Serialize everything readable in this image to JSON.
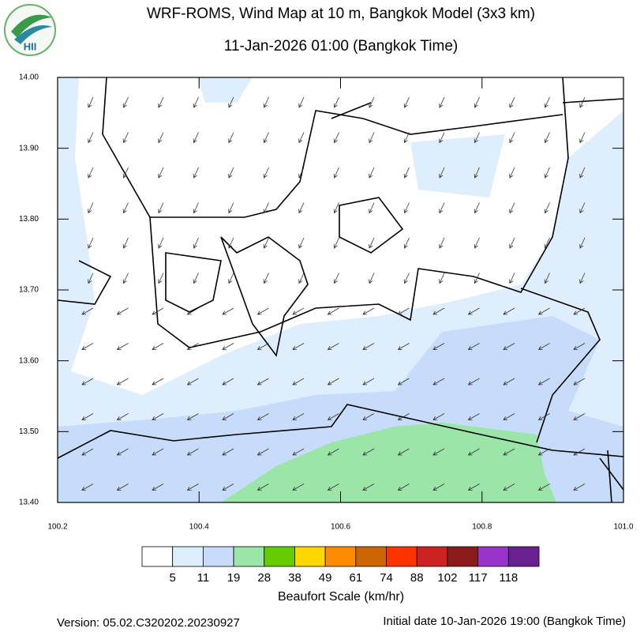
{
  "logo": {
    "text": "HII"
  },
  "chart_data": {
    "type": "map",
    "title": "WRF-ROMS, Wind Map at 10 m, Bangkok Model (3x3 km)",
    "subtitle": "11-Jan-2026 01:00 (Bangkok Time)",
    "xlim": [
      100.2,
      101.0
    ],
    "xticks": [
      100.2,
      100.4,
      100.6,
      100.8,
      {
        "value": 101,
        "label": "101.0"
      }
    ],
    "ylim": [
      13.4,
      14.0
    ],
    "yticks": [
      {
        "value": 13.4,
        "label": "13.40"
      },
      {
        "value": 13.5,
        "label": "13.50"
      },
      {
        "value": 13.6,
        "label": "13.60"
      },
      {
        "value": 13.7,
        "label": "13.70"
      },
      {
        "value": 13.8,
        "label": "13.80"
      },
      {
        "value": 13.9,
        "label": "13.90"
      },
      {
        "value": 14,
        "label": "14.00"
      }
    ],
    "colorbar": {
      "title": "Beaufort Scale (km/hr)",
      "colors": [
        "#ffffff",
        "#dfeefd",
        "#c6dcfa",
        "#9be5a8",
        "#66cc00",
        "#ffd700",
        "#ff8c00",
        "#cc6600",
        "#ff3300",
        "#cc2222",
        "#8b1a1a",
        "#9933cc",
        "#6a2090"
      ],
      "levels": [
        5,
        11,
        19,
        28,
        38,
        49,
        61,
        74,
        88,
        102,
        117,
        118
      ]
    }
  },
  "footer": {
    "version": "Version: 05.02.C320202.20230927",
    "initial": "Initial date 10-Jan-2026 19:00 (Bangkok Time)"
  }
}
